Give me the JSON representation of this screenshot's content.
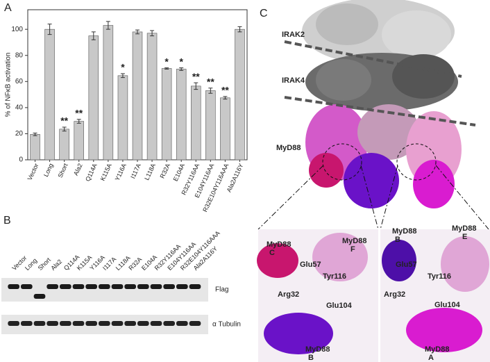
{
  "chart_data": {
    "type": "bar",
    "y_label": "% of NFκB activation",
    "categories": [
      "Vector",
      "Long",
      "Short",
      "Ala2",
      "Q114A",
      "K115A",
      "Y116A",
      "I117A",
      "L118A",
      "R32A",
      "E104A",
      "R32Y116AA",
      "E104Y116AA",
      "R32E104Y116AAA",
      "Ala2A116Y"
    ],
    "values": [
      19.5,
      100,
      23.5,
      29.5,
      95,
      103,
      64.5,
      98,
      97,
      70,
      69.5,
      56.5,
      53,
      47.5,
      100
    ],
    "errors": [
      1,
      4,
      1.5,
      1.5,
      3,
      3,
      1.5,
      1.5,
      2,
      0.5,
      1,
      2.5,
      2,
      1,
      2
    ],
    "significance": [
      null,
      null,
      "**",
      "**",
      null,
      null,
      "*",
      null,
      null,
      "*",
      "*",
      "**",
      "**",
      "**",
      null
    ],
    "color": "#c8c8c8",
    "ylim": [
      0,
      115
    ],
    "yticks": [
      0,
      20,
      40,
      60,
      80,
      100
    ]
  },
  "panels": {
    "a": "A",
    "b": "B",
    "c": "C"
  },
  "blot": {
    "lanes": [
      "Vector",
      "Long",
      "Short",
      "Ala2",
      "Q114A",
      "K115A",
      "Y116A",
      "I117A",
      "L118A",
      "R32A",
      "E104A",
      "R32Y116AA",
      "E104Y116AA",
      "R32E104Y116AAA",
      "Ala2A116Y"
    ],
    "rows": [
      "Flag",
      "α Tubulin"
    ]
  },
  "structure": {
    "chains": [
      "IRAK2",
      "IRAK4",
      "MyD88"
    ],
    "left_inset": {
      "chain_c": [
        "MyD88",
        "C"
      ],
      "chain_f": [
        "MyD88",
        "F"
      ],
      "chain_b": [
        "MyD88",
        "B"
      ],
      "residues": [
        "Glu57",
        "Tyr116",
        "Arg32",
        "Glu104"
      ]
    },
    "right_inset": {
      "chain_b": [
        "MyD88",
        "B"
      ],
      "chain_e": [
        "MyD88",
        "E"
      ],
      "chain_a": [
        "MyD88",
        "A"
      ],
      "residues": [
        "Glu57",
        "Tyr116",
        "Arg32",
        "Glu104"
      ]
    }
  }
}
